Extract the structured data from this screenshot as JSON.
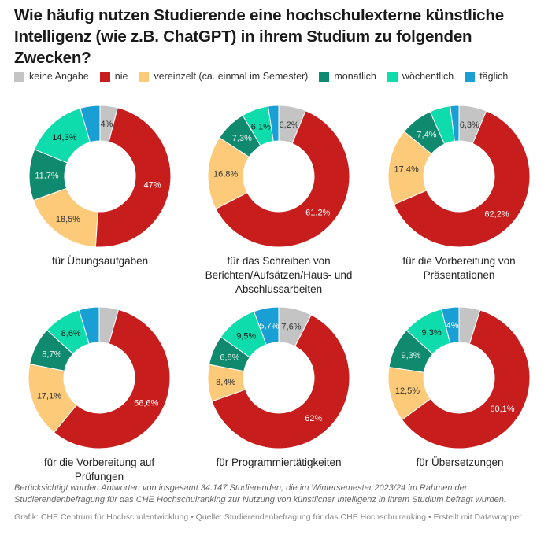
{
  "title": "Wie häufig nutzen Studierende eine hochschulexterne künstliche Intelligenz (wie z.B. ChatGPT) in ihrem Studium zu folgenden Zwecken?",
  "legend": [
    {
      "label": "keine Angabe",
      "color": "#c4c4c4"
    },
    {
      "label": "nie",
      "color": "#c71e1d"
    },
    {
      "label": "vereinzelt (ca. einmal im Semester)",
      "color": "#fdca79"
    },
    {
      "label": "monatlich",
      "color": "#0f8a6e"
    },
    {
      "label": "wöchentlich",
      "color": "#0fdcac"
    },
    {
      "label": "täglich",
      "color": "#1a9fd4"
    }
  ],
  "chart_data": [
    {
      "type": "pie",
      "title": "für Übungsaufgaben",
      "categories": [
        "keine Angabe",
        "nie",
        "vereinzelt (ca. einmal im Semester)",
        "monatlich",
        "wöchentlich",
        "täglich"
      ],
      "values": [
        4,
        47,
        18.5,
        11.7,
        14.3,
        4.5
      ],
      "labels": [
        "4%",
        "47%",
        "18,5%",
        "11,7%",
        "14,3%",
        ""
      ]
    },
    {
      "type": "pie",
      "title": "für das Schreiben von Berichten/Aufsätzen/Haus- und Abschlussarbeiten",
      "categories": [
        "keine Angabe",
        "nie",
        "vereinzelt (ca. einmal im Semester)",
        "monatlich",
        "wöchentlich",
        "täglich"
      ],
      "values": [
        6.2,
        61.2,
        16.8,
        7.3,
        6.1,
        2.4
      ],
      "labels": [
        "6,2%",
        "61,2%",
        "16,8%",
        "7,3%",
        "6,1%",
        ""
      ]
    },
    {
      "type": "pie",
      "title": "für die Vorbereitung von Präsentationen",
      "categories": [
        "keine Angabe",
        "nie",
        "vereinzelt (ca. einmal im Semester)",
        "monatlich",
        "wöchentlich",
        "täglich"
      ],
      "values": [
        6.3,
        62.2,
        17.4,
        7.4,
        4.7,
        2.0
      ],
      "labels": [
        "6,3%",
        "62,2%",
        "17,4%",
        "7,4%",
        "",
        ""
      ]
    },
    {
      "type": "pie",
      "title": "für die Vorbereitung auf Prüfungen",
      "categories": [
        "keine Angabe",
        "nie",
        "vereinzelt (ca. einmal im Semester)",
        "monatlich",
        "wöchentlich",
        "täglich"
      ],
      "values": [
        4.4,
        56.6,
        17.1,
        8.7,
        8.6,
        4.6
      ],
      "labels": [
        "",
        "56,6%",
        "17,1%",
        "8,7%",
        "8,6%",
        ""
      ]
    },
    {
      "type": "pie",
      "title": "für Programmiertätigkeiten",
      "categories": [
        "keine Angabe",
        "nie",
        "vereinzelt (ca. einmal im Semester)",
        "monatlich",
        "wöchentlich",
        "täglich"
      ],
      "values": [
        7.6,
        62,
        8.4,
        6.8,
        9.5,
        5.7
      ],
      "labels": [
        "7,6%",
        "62%",
        "8,4%",
        "6,8%",
        "9,5%",
        "5,7%"
      ]
    },
    {
      "type": "pie",
      "title": "für Übersetzungen",
      "categories": [
        "keine Angabe",
        "nie",
        "vereinzelt (ca. einmal im Semester)",
        "monatlich",
        "wöchentlich",
        "täglich"
      ],
      "values": [
        4.8,
        60.1,
        12.5,
        9.3,
        9.3,
        4
      ],
      "labels": [
        "",
        "60,1%",
        "12,5%",
        "9,3%",
        "9,3%",
        "4%"
      ]
    }
  ],
  "label_text_colors": [
    "#333333",
    "#ffffff",
    "#333333",
    "#e6f4f0",
    "#1a1a1a",
    "#ffffff"
  ],
  "notes": "Berücksichtigt wurden Antworten von insgesamt 34.147 Studierenden, die im Wintersemester 2023/24 im Rahmen der Studierendenbefragung für das CHE Hochschulranking zur Nutzung von künstlicher Intelligenz in ihrem Studium befragt wurden.",
  "source": "Grafik: CHE Centrum für Hochschulentwicklung • Quelle: Studierendenbefragung für das CHE Hochschulranking • Erstellt mit Datawrapper"
}
